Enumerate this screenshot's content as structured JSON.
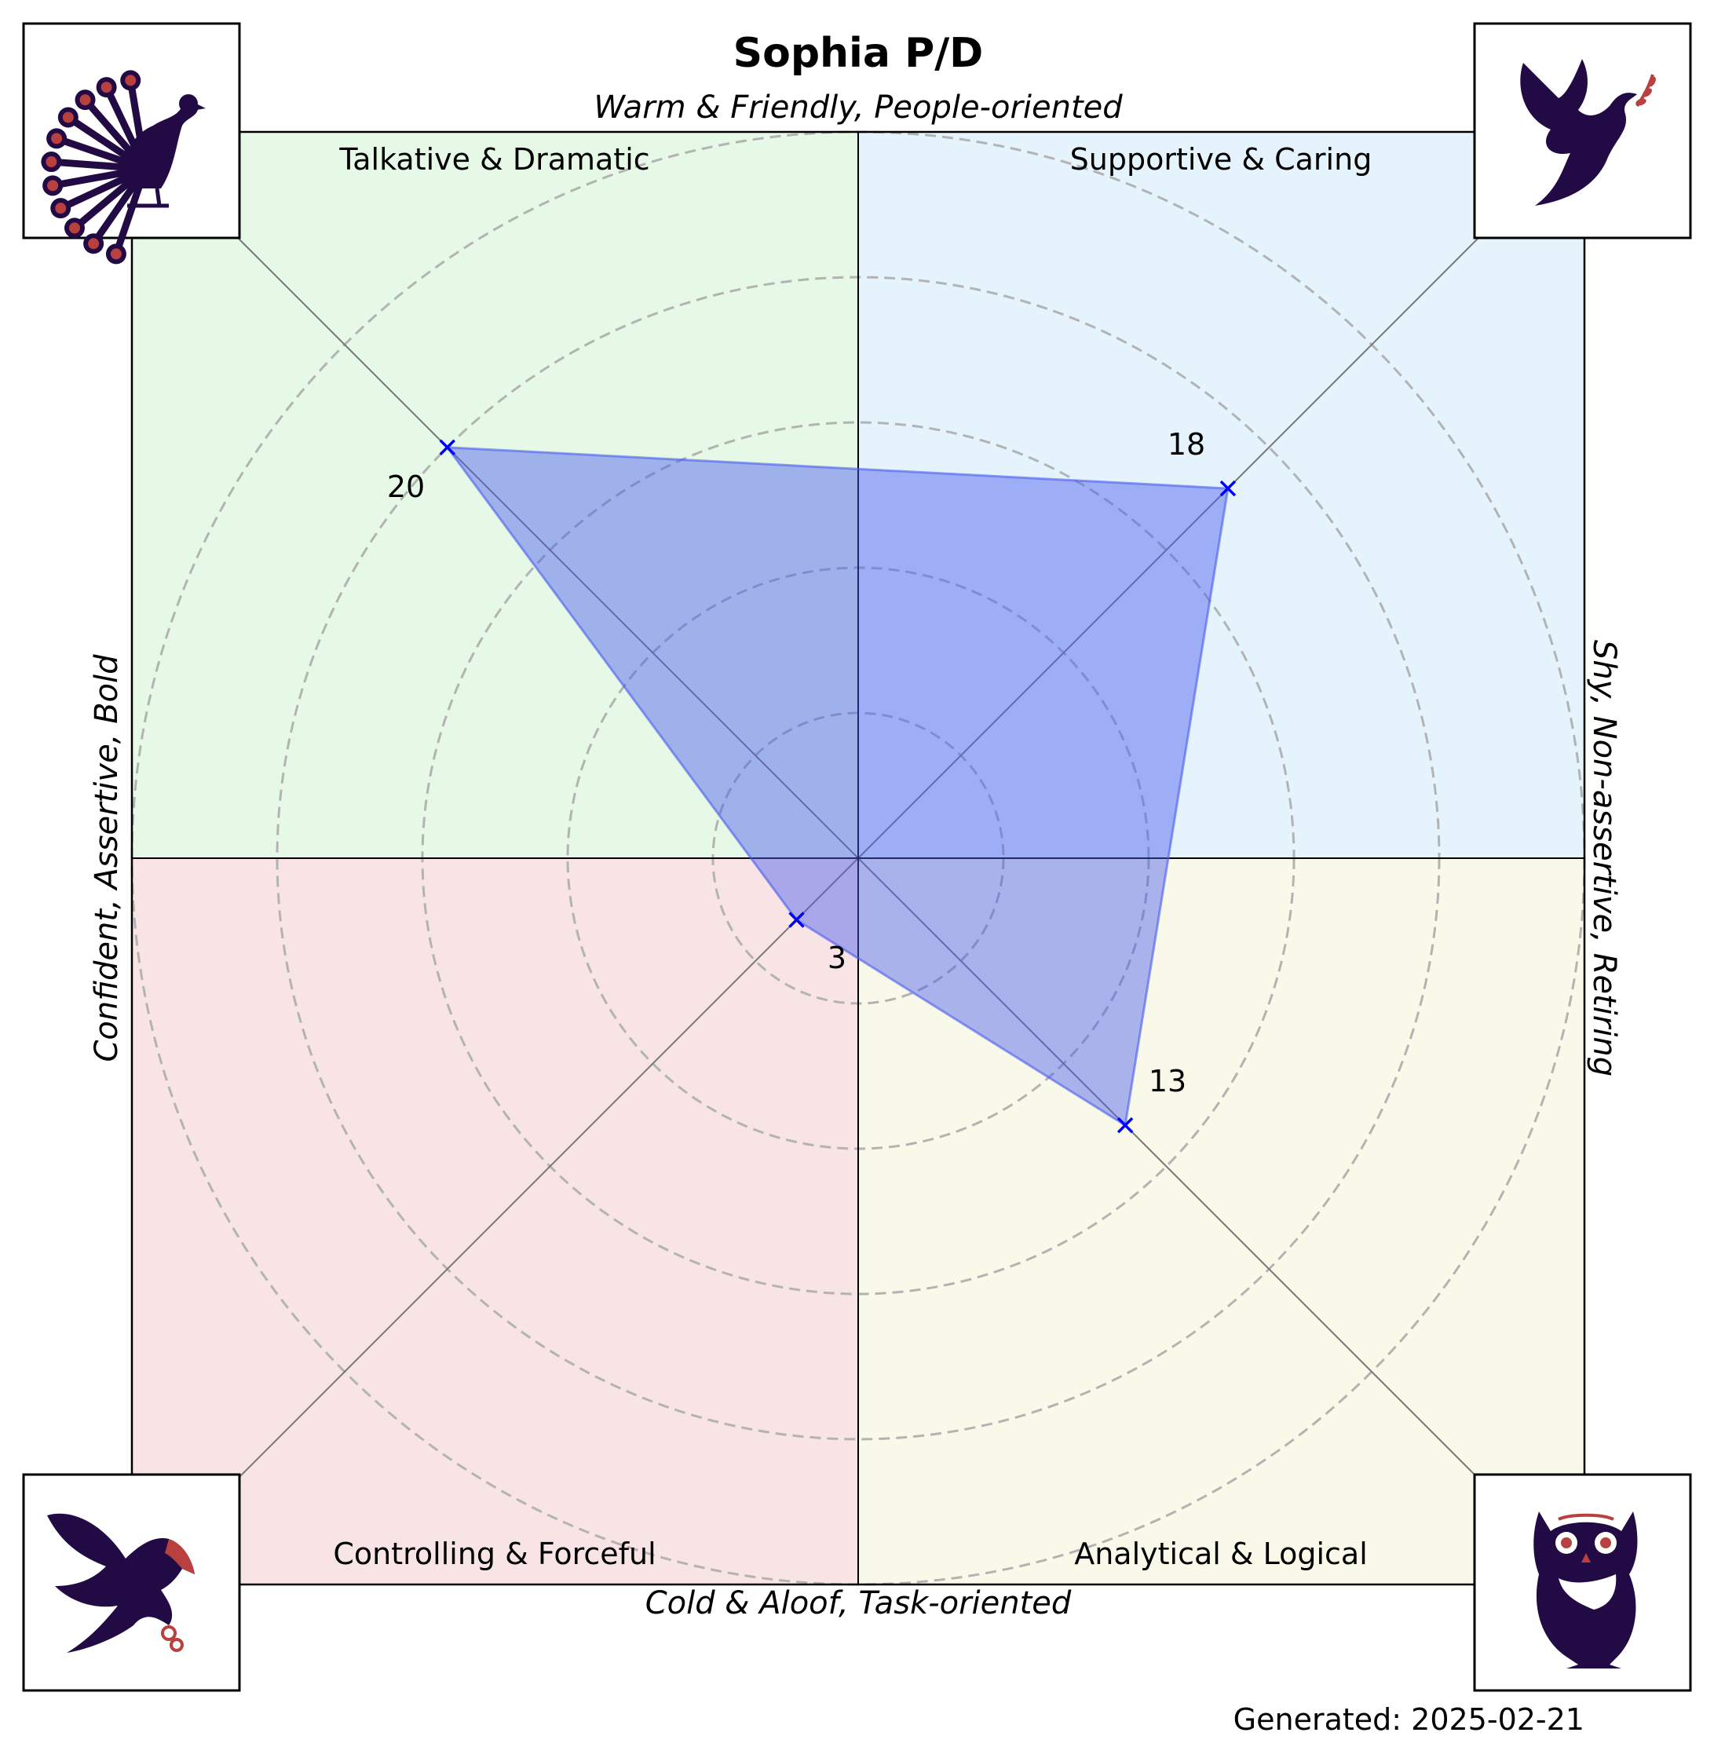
{
  "chart_data": {
    "type": "radar",
    "title": "Sophia P/D",
    "axis_labels": {
      "top": "Warm & Friendly, People-oriented",
      "bottom": "Cold & Aloof, Task-oriented",
      "left": "Confident, Assertive, Bold",
      "right": "Shy, Non-assertive, Retiring"
    },
    "quadrants": [
      {
        "key": "top-left",
        "label": "Talkative & Dramatic",
        "color": "#e6f8e6",
        "animal": "peacock"
      },
      {
        "key": "top-right",
        "label": "Supportive & Caring",
        "color": "#e4f3fc",
        "animal": "dove"
      },
      {
        "key": "bottom-left",
        "label": "Controlling & Forceful",
        "color": "#f8e4e5",
        "animal": "eagle"
      },
      {
        "key": "bottom-right",
        "label": "Analytical & Logical",
        "color": "#f9f9ea",
        "animal": "owl"
      }
    ],
    "series": [
      {
        "name": "Sophia P/D",
        "color": "#0000ff",
        "fill": "#4a5cf0",
        "values": {
          "top-left": 20,
          "top-right": 18,
          "bottom-left": 3,
          "bottom-right": 13
        }
      }
    ],
    "value_labels": {
      "top-left": "20",
      "top-right": "18",
      "bottom-left": "3",
      "bottom-right": "13"
    },
    "rmax": 25,
    "grid_rings": [
      5,
      10,
      15,
      20,
      25
    ],
    "grid": true
  },
  "footer": {
    "generated": "Generated: 2025-02-21"
  }
}
